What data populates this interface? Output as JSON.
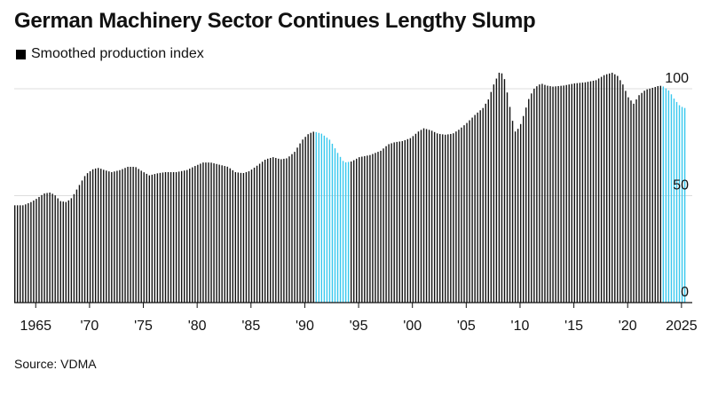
{
  "title": "German Machinery Sector Continues Lengthy Slump",
  "legend": {
    "label": "Smoothed production index",
    "color": "#000000"
  },
  "source": "Source: VDMA",
  "colors": {
    "bar": "#111111",
    "highlight": "#38c8ee",
    "grid": "#dddddd",
    "axis": "#111111"
  },
  "chart_data": {
    "type": "bar",
    "title": "German Machinery Sector Continues Lengthy Slump",
    "series_name": "Smoothed production index",
    "xlabel": "",
    "ylabel": "",
    "ylim": [
      0,
      100
    ],
    "x_range": [
      1963,
      2026
    ],
    "yticks": [
      {
        "value": 0,
        "label": "0"
      },
      {
        "value": 50,
        "label": "50"
      },
      {
        "value": 100,
        "label": "100"
      }
    ],
    "xticks": [
      {
        "value": 1965,
        "label": "1965"
      },
      {
        "value": 1970,
        "label": "'70"
      },
      {
        "value": 1975,
        "label": "'75"
      },
      {
        "value": 1980,
        "label": "'80"
      },
      {
        "value": 1985,
        "label": "'85"
      },
      {
        "value": 1990,
        "label": "'90"
      },
      {
        "value": 1995,
        "label": "'95"
      },
      {
        "value": 2000,
        "label": "'00"
      },
      {
        "value": 2005,
        "label": "'05"
      },
      {
        "value": 2010,
        "label": "'10"
      },
      {
        "value": 2015,
        "label": "'15"
      },
      {
        "value": 2020,
        "label": "'20"
      },
      {
        "value": 2025,
        "label": "2025"
      }
    ],
    "anchors": [
      [
        1963.0,
        45.5
      ],
      [
        1963.8,
        45.5
      ],
      [
        1964.5,
        47
      ],
      [
        1965.0,
        48.5
      ],
      [
        1965.7,
        51
      ],
      [
        1966.3,
        51.5
      ],
      [
        1966.8,
        50
      ],
      [
        1967.2,
        47.5
      ],
      [
        1967.8,
        47
      ],
      [
        1968.3,
        49
      ],
      [
        1969.0,
        55
      ],
      [
        1969.6,
        60
      ],
      [
        1970.3,
        62.5
      ],
      [
        1970.8,
        63
      ],
      [
        1971.3,
        62
      ],
      [
        1972.0,
        61
      ],
      [
        1972.8,
        62
      ],
      [
        1973.5,
        63.5
      ],
      [
        1974.2,
        63.5
      ],
      [
        1974.8,
        61.5
      ],
      [
        1975.5,
        59.5
      ],
      [
        1976.3,
        60.5
      ],
      [
        1977.0,
        61
      ],
      [
        1978.0,
        61
      ],
      [
        1979.0,
        62
      ],
      [
        1979.8,
        64
      ],
      [
        1980.5,
        65.5
      ],
      [
        1981.2,
        65.5
      ],
      [
        1982.0,
        64.5
      ],
      [
        1982.8,
        63.5
      ],
      [
        1983.5,
        61
      ],
      [
        1984.2,
        60.5
      ],
      [
        1984.8,
        61.5
      ],
      [
        1985.5,
        64
      ],
      [
        1986.3,
        67
      ],
      [
        1987.0,
        68
      ],
      [
        1987.7,
        67
      ],
      [
        1988.3,
        67.5
      ],
      [
        1989.0,
        70.5
      ],
      [
        1989.7,
        76
      ],
      [
        1990.3,
        79
      ],
      [
        1990.8,
        80
      ],
      [
        1991.5,
        79
      ],
      [
        1992.3,
        76
      ],
      [
        1993.0,
        70
      ],
      [
        1993.6,
        65.5
      ],
      [
        1994.3,
        66
      ],
      [
        1995.0,
        68
      ],
      [
        1996.0,
        69
      ],
      [
        1997.0,
        71
      ],
      [
        1997.7,
        74
      ],
      [
        1998.3,
        75
      ],
      [
        1999.0,
        75.5
      ],
      [
        1999.8,
        77
      ],
      [
        2000.5,
        80
      ],
      [
        2001.0,
        81.5
      ],
      [
        2001.7,
        80.5
      ],
      [
        2002.3,
        79
      ],
      [
        2003.0,
        78.5
      ],
      [
        2003.7,
        79
      ],
      [
        2004.3,
        81
      ],
      [
        2005.0,
        84
      ],
      [
        2005.8,
        88
      ],
      [
        2006.5,
        91
      ],
      [
        2007.0,
        95
      ],
      [
        2007.5,
        102
      ],
      [
        2008.0,
        107.5
      ],
      [
        2008.4,
        107
      ],
      [
        2008.8,
        97
      ],
      [
        2009.2,
        86
      ],
      [
        2009.5,
        80
      ],
      [
        2009.9,
        82
      ],
      [
        2010.3,
        88
      ],
      [
        2010.8,
        96
      ],
      [
        2011.3,
        100.5
      ],
      [
        2011.9,
        102.5
      ],
      [
        2012.4,
        101.5
      ],
      [
        2013.0,
        101
      ],
      [
        2014.0,
        101.5
      ],
      [
        2015.0,
        102.5
      ],
      [
        2016.0,
        103
      ],
      [
        2017.0,
        104
      ],
      [
        2017.8,
        106.5
      ],
      [
        2018.5,
        107.5
      ],
      [
        2019.0,
        106
      ],
      [
        2019.5,
        102
      ],
      [
        2020.0,
        96
      ],
      [
        2020.5,
        93
      ],
      [
        2021.0,
        97
      ],
      [
        2021.6,
        99.5
      ],
      [
        2022.3,
        100.5
      ],
      [
        2022.9,
        101.5
      ],
      [
        2023.3,
        101
      ],
      [
        2023.8,
        99
      ],
      [
        2024.3,
        95
      ],
      [
        2024.8,
        92
      ],
      [
        2025.2,
        91
      ]
    ],
    "highlight_ranges": [
      [
        1991.0,
        1994.0
      ],
      [
        2023.1,
        2025.3
      ]
    ],
    "last_x": 2025.3
  }
}
